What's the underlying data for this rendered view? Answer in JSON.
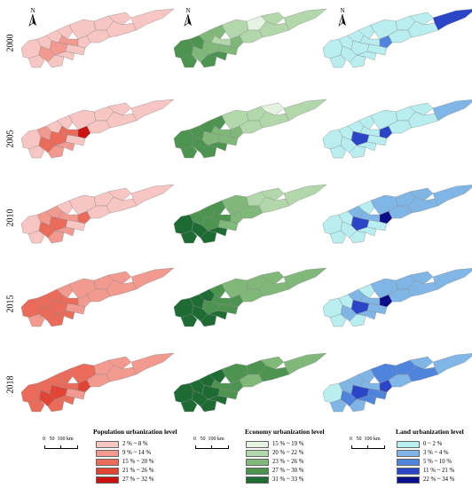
{
  "years": [
    "2000",
    "2005",
    "2010",
    "2015",
    "2018"
  ],
  "north_label": "N",
  "scale": {
    "zero": "0",
    "mid": "50",
    "end": "100 km"
  },
  "panels": [
    {
      "key": "population",
      "title": "Population urbanization level",
      "classes": [
        "2 % ~ 8 %",
        "9 % ~ 14 %",
        "15 % ~ 20 %",
        "21 % ~ 26 %",
        "27 % ~ 32 %"
      ],
      "colors": [
        "#f7c6c2",
        "#f29a90",
        "#ea6b5a",
        "#e04535",
        "#cc1111"
      ],
      "region_classes": [
        [
          0,
          0,
          0,
          1,
          0,
          0,
          1,
          0,
          0,
          1,
          0,
          0,
          0,
          0,
          0,
          0,
          0,
          0
        ],
        [
          0,
          0,
          1,
          2,
          1,
          0,
          2,
          1,
          0,
          2,
          4,
          0,
          0,
          0,
          0,
          0,
          0,
          0
        ],
        [
          0,
          0,
          1,
          2,
          1,
          1,
          2,
          1,
          0,
          1,
          2,
          0,
          0,
          0,
          0,
          0,
          0,
          0
        ],
        [
          2,
          1,
          2,
          2,
          2,
          2,
          2,
          2,
          1,
          2,
          1,
          1,
          1,
          1,
          1,
          1,
          1,
          1
        ],
        [
          2,
          2,
          2,
          3,
          2,
          2,
          3,
          2,
          2,
          2,
          3,
          1,
          2,
          1,
          1,
          1,
          1,
          1
        ]
      ]
    },
    {
      "key": "economy",
      "title": "Economy urbanization level",
      "classes": [
        "15 % ~ 19 %",
        "20 % ~ 22 %",
        "23 % ~ 26 %",
        "27 % ~ 30 %",
        "31 % ~ 33 %"
      ],
      "colors": [
        "#e4f2e0",
        "#b2d7aa",
        "#7fb878",
        "#4c9450",
        "#1e6b34"
      ],
      "region_classes": [
        [
          3,
          3,
          3,
          2,
          3,
          2,
          2,
          3,
          2,
          1,
          2,
          2,
          1,
          0,
          1,
          1,
          1,
          1
        ],
        [
          3,
          3,
          3,
          3,
          3,
          3,
          2,
          3,
          3,
          2,
          2,
          2,
          1,
          1,
          1,
          0,
          1,
          1
        ],
        [
          4,
          4,
          3,
          4,
          4,
          3,
          3,
          4,
          3,
          3,
          2,
          2,
          2,
          1,
          2,
          1,
          1,
          1
        ],
        [
          4,
          4,
          4,
          4,
          4,
          4,
          3,
          4,
          3,
          3,
          3,
          3,
          2,
          2,
          2,
          2,
          2,
          2
        ],
        [
          4,
          4,
          4,
          4,
          4,
          4,
          4,
          4,
          4,
          3,
          3,
          3,
          3,
          3,
          2,
          2,
          3,
          2
        ]
      ]
    },
    {
      "key": "land",
      "title": "Land urbanization level",
      "classes": [
        "0 ~ 2 %",
        "3 % ~ 4 %",
        "5 % ~ 10 %",
        "11 % ~ 21 %",
        "22 % ~ 34 %"
      ],
      "colors": [
        "#b8eef0",
        "#7fb6e6",
        "#4f84dc",
        "#2a45c8",
        "#0b0f8a"
      ],
      "region_classes": [
        [
          0,
          0,
          0,
          0,
          0,
          0,
          0,
          0,
          0,
          0,
          2,
          0,
          0,
          0,
          0,
          0,
          0,
          3
        ],
        [
          0,
          0,
          0,
          0,
          0,
          0,
          3,
          0,
          0,
          0,
          3,
          0,
          0,
          0,
          0,
          0,
          0,
          1
        ],
        [
          0,
          0,
          0,
          0,
          0,
          1,
          3,
          0,
          0,
          1,
          4,
          0,
          1,
          1,
          1,
          1,
          1,
          1
        ],
        [
          0,
          0,
          0,
          1,
          0,
          1,
          3,
          1,
          0,
          1,
          4,
          1,
          1,
          1,
          1,
          1,
          1,
          1
        ],
        [
          0,
          1,
          1,
          2,
          1,
          1,
          3,
          2,
          1,
          1,
          3,
          2,
          2,
          2,
          1,
          1,
          2,
          1
        ]
      ]
    }
  ]
}
